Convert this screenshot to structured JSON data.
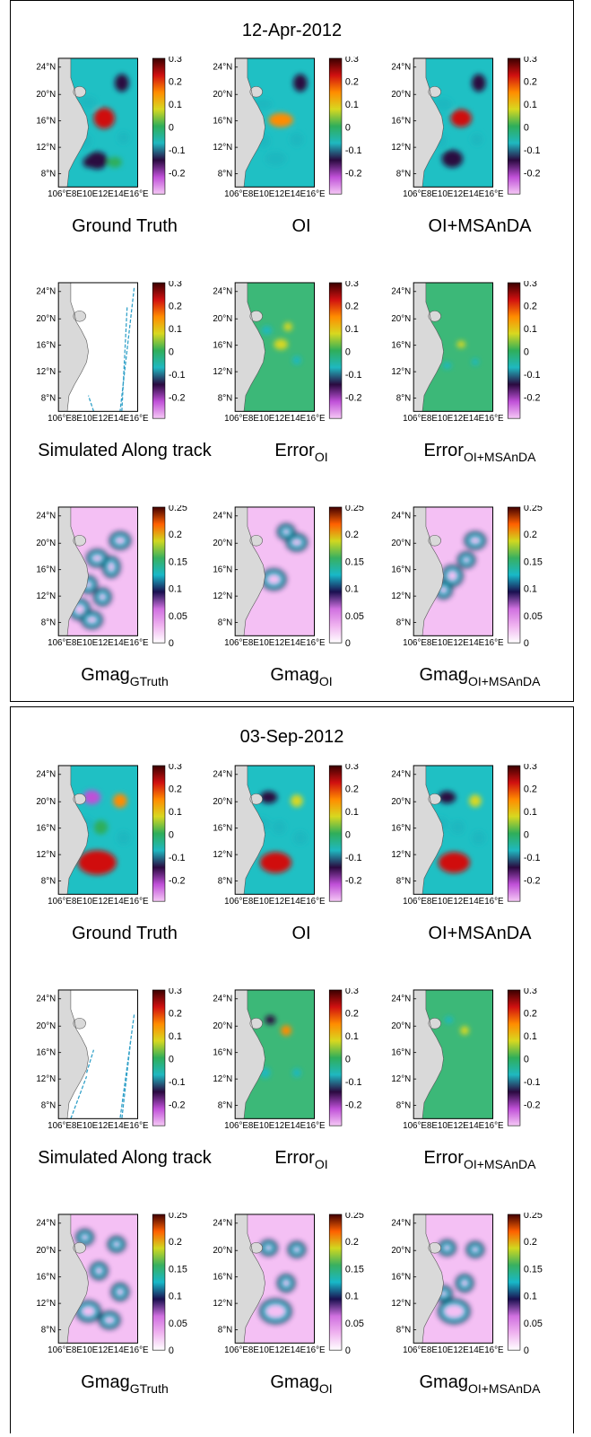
{
  "panels": [
    {
      "date": "12-Apr-2012",
      "rows": [
        [
          {
            "type": "ssh",
            "variant": "gt",
            "caption": "Ground Truth",
            "sub": "",
            "colorbar": [
              "0.3",
              "0.2",
              "0.1",
              "0",
              "-0.1",
              "-0.2"
            ]
          },
          {
            "type": "ssh",
            "variant": "oi",
            "caption": "OI",
            "sub": "",
            "colorbar": [
              "0.3",
              "0.2",
              "0.1",
              "0",
              "-0.1",
              "-0.2"
            ]
          },
          {
            "type": "ssh",
            "variant": "ms",
            "caption": "OI+MSAnDA",
            "sub": "",
            "colorbar": [
              "0.3",
              "0.2",
              "0.1",
              "0",
              "-0.1",
              "-0.2"
            ]
          }
        ],
        [
          {
            "type": "track",
            "variant": "t1",
            "caption": "Simulated Along track",
            "sub": "",
            "colorbar": [
              "0.3",
              "0.2",
              "0.1",
              "0",
              "-0.1",
              "-0.2"
            ]
          },
          {
            "type": "err",
            "variant": "oi",
            "caption": "Error",
            "sub": "OI",
            "colorbar": [
              "0.3",
              "0.2",
              "0.1",
              "0",
              "-0.1",
              "-0.2"
            ]
          },
          {
            "type": "err",
            "variant": "ms",
            "caption": "Error",
            "sub": "OI+MSAnDA",
            "colorbar": [
              "0.3",
              "0.2",
              "0.1",
              "0",
              "-0.1",
              "-0.2"
            ]
          }
        ],
        [
          {
            "type": "gmag",
            "variant": "gt",
            "caption": "Gmag",
            "sub": "GTruth",
            "colorbar": [
              "0.25",
              "0.2",
              "0.15",
              "0.1",
              "0.05",
              "0"
            ]
          },
          {
            "type": "gmag",
            "variant": "oi",
            "caption": "Gmag",
            "sub": "OI",
            "colorbar": [
              "0.25",
              "0.2",
              "0.15",
              "0.1",
              "0.05",
              "0"
            ]
          },
          {
            "type": "gmag",
            "variant": "ms",
            "caption": "Gmag",
            "sub": "OI+MSAnDA",
            "colorbar": [
              "0.25",
              "0.2",
              "0.15",
              "0.1",
              "0.05",
              "0"
            ]
          }
        ]
      ]
    },
    {
      "date": "03-Sep-2012",
      "rows": [
        [
          {
            "type": "ssh",
            "variant": "gt2",
            "caption": "Ground Truth",
            "sub": "",
            "colorbar": [
              "0.3",
              "0.2",
              "0.1",
              "0",
              "-0.1",
              "-0.2"
            ]
          },
          {
            "type": "ssh",
            "variant": "oi2",
            "caption": "OI",
            "sub": "",
            "colorbar": [
              "0.3",
              "0.2",
              "0.1",
              "0",
              "-0.1",
              "-0.2"
            ]
          },
          {
            "type": "ssh",
            "variant": "ms2",
            "caption": "OI+MSAnDA",
            "sub": "",
            "colorbar": [
              "0.3",
              "0.2",
              "0.1",
              "0",
              "-0.1",
              "-0.2"
            ]
          }
        ],
        [
          {
            "type": "track",
            "variant": "t2",
            "caption": "Simulated Along track",
            "sub": "",
            "colorbar": [
              "0.3",
              "0.2",
              "0.1",
              "0",
              "-0.1",
              "-0.2"
            ]
          },
          {
            "type": "err",
            "variant": "oi2",
            "caption": "Error",
            "sub": "OI",
            "colorbar": [
              "0.3",
              "0.2",
              "0.1",
              "0",
              "-0.1",
              "-0.2"
            ]
          },
          {
            "type": "err",
            "variant": "ms2",
            "caption": "Error",
            "sub": "OI+MSAnDA",
            "colorbar": [
              "0.3",
              "0.2",
              "0.1",
              "0",
              "-0.1",
              "-0.2"
            ]
          }
        ],
        [
          {
            "type": "gmag",
            "variant": "gt2",
            "caption": "Gmag",
            "sub": "GTruth",
            "colorbar": [
              "0.25",
              "0.2",
              "0.15",
              "0.1",
              "0.05",
              "0"
            ]
          },
          {
            "type": "gmag",
            "variant": "oi2",
            "caption": "Gmag",
            "sub": "OI",
            "colorbar": [
              "0.25",
              "0.2",
              "0.15",
              "0.1",
              "0.05",
              "0"
            ]
          },
          {
            "type": "gmag",
            "variant": "ms2",
            "caption": "Gmag",
            "sub": "OI+MSAnDA",
            "colorbar": [
              "0.25",
              "0.2",
              "0.15",
              "0.1",
              "0.05",
              "0"
            ]
          }
        ]
      ]
    }
  ],
  "lat_labels": [
    "24°N",
    "20°N",
    "16°N",
    "12°N",
    "8°N"
  ],
  "lon_label": "106°E8E10E12E14E16°E",
  "colors": {
    "land": "#d9d9d9",
    "ssh_scale": [
      "#f5c8f5",
      "#c050d8",
      "#2a0a40",
      "#1fb8c0",
      "#2fae5a",
      "#d8d820",
      "#ff8c00",
      "#d01010",
      "#3a0000"
    ],
    "gmag_scale": [
      "#ffffff",
      "#f0b4f0",
      "#d070e0",
      "#1a1050",
      "#18b8c8",
      "#38b060",
      "#d0d820",
      "#ff6000",
      "#400000"
    ]
  }
}
